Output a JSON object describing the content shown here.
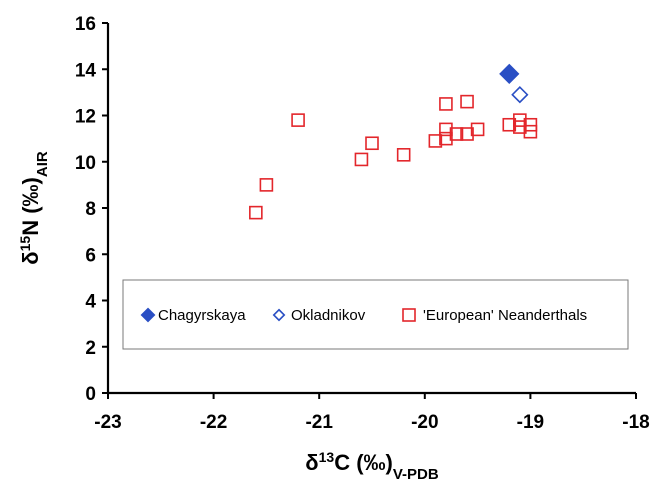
{
  "chart_data": {
    "type": "scatter",
    "title": "",
    "xlabel": {
      "prefix": "δ",
      "sup": "13",
      "main": "C (‰)",
      "sub": "V-PDB"
    },
    "ylabel": {
      "prefix": "δ",
      "sup": "15",
      "main": "N (‰)",
      "sub": "AIR"
    },
    "xlim": [
      -23,
      -18
    ],
    "ylim": [
      0,
      16
    ],
    "xticks": [
      -23,
      -22,
      -21,
      -20,
      -19,
      -18
    ],
    "yticks": [
      0,
      2,
      4,
      6,
      8,
      10,
      12,
      14,
      16
    ],
    "grid": false,
    "legend_position": "bottom-center, inside plot",
    "series": [
      {
        "name": "Chagyrskaya",
        "marker": "diamond-filled",
        "color": "#2a4fc4",
        "points": [
          {
            "x": -19.2,
            "y": 13.8
          }
        ]
      },
      {
        "name": "Okladnikov",
        "marker": "diamond-open",
        "color": "#2a4fc4",
        "points": [
          {
            "x": -19.1,
            "y": 12.9
          }
        ]
      },
      {
        "name": "'European' Neanderthals",
        "marker": "square-open",
        "color": "#e3262b",
        "points": [
          {
            "x": -21.6,
            "y": 7.8
          },
          {
            "x": -21.5,
            "y": 9.0
          },
          {
            "x": -21.2,
            "y": 11.8
          },
          {
            "x": -20.6,
            "y": 10.1
          },
          {
            "x": -20.5,
            "y": 10.8
          },
          {
            "x": -20.2,
            "y": 10.3
          },
          {
            "x": -19.9,
            "y": 10.9
          },
          {
            "x": -19.8,
            "y": 12.5
          },
          {
            "x": -19.8,
            "y": 11.4
          },
          {
            "x": -19.8,
            "y": 11.0
          },
          {
            "x": -19.7,
            "y": 11.2
          },
          {
            "x": -19.6,
            "y": 12.6
          },
          {
            "x": -19.6,
            "y": 11.2
          },
          {
            "x": -19.5,
            "y": 11.4
          },
          {
            "x": -19.2,
            "y": 11.6
          },
          {
            "x": -19.1,
            "y": 11.8
          },
          {
            "x": -19.1,
            "y": 11.5
          },
          {
            "x": -19.0,
            "y": 11.6
          },
          {
            "x": -19.0,
            "y": 11.3
          }
        ]
      }
    ]
  }
}
